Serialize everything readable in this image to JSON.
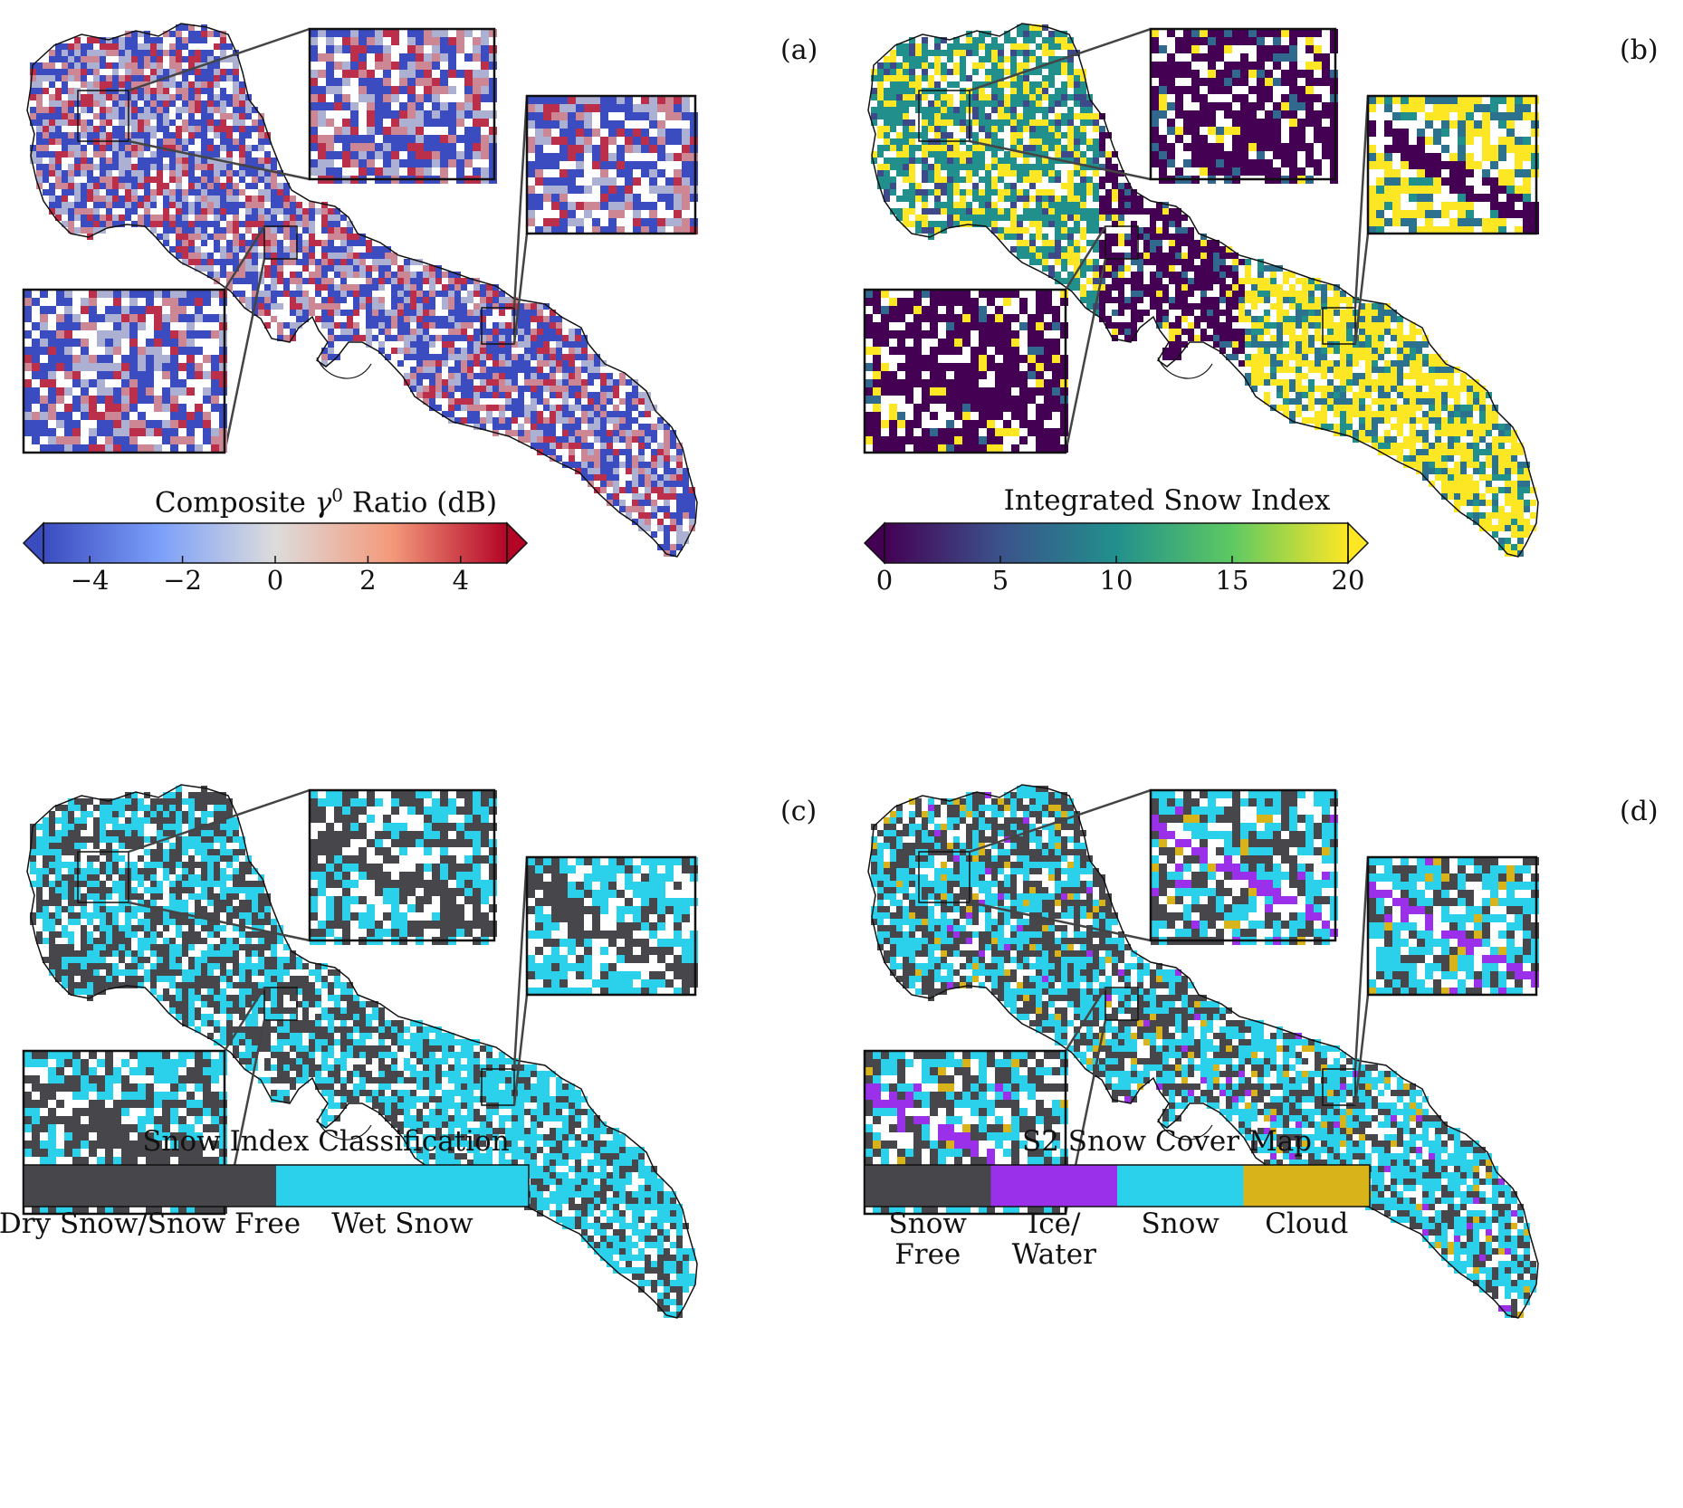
{
  "panels": [
    {
      "label": "(a)",
      "legend_title_pre": "Composite ",
      "legend_title_sym": "γ",
      "legend_title_sup": "0",
      "legend_title_post": " Ratio (dB)",
      "colormap": "coolwarm",
      "ticks": [
        "−4",
        "−2",
        "0",
        "2",
        "4"
      ],
      "range": [
        -5,
        5
      ],
      "tick_values": [
        -4,
        -2,
        0,
        2,
        4
      ],
      "extend": "both"
    },
    {
      "label": "(b)",
      "legend_title": "Integrated Snow Index",
      "colormap": "viridis",
      "ticks": [
        "0",
        "5",
        "10",
        "15",
        "20"
      ],
      "range": [
        0,
        20
      ],
      "tick_values": [
        0,
        5,
        10,
        15,
        20
      ],
      "extend": "both"
    },
    {
      "label": "(c)",
      "legend_title": "Snow Index Classification",
      "classes": [
        {
          "label": "Dry Snow/Snow Free",
          "color": "#46464b"
        },
        {
          "label": "Wet Snow",
          "color": "#2bd0ea"
        }
      ]
    },
    {
      "label": "(d)",
      "legend_title": "S2 Snow Cover Map",
      "classes": [
        {
          "label": "Snow\nFree",
          "color": "#46464b"
        },
        {
          "label": "Ice/\nWater",
          "color": "#9b30ea"
        },
        {
          "label": "Snow",
          "color": "#2bd0ea"
        },
        {
          "label": "Cloud",
          "color": "#d8b319"
        }
      ]
    }
  ],
  "colors": {
    "coolwarm_low": "#3b4cc0",
    "coolwarm_mid": "#dddcdc",
    "coolwarm_high": "#b40426",
    "viridis_low": "#440154",
    "viridis_mid": "#21908d",
    "viridis_high": "#fde725",
    "snow_free": "#46464b",
    "ice_water": "#9b30ea",
    "snow": "#2bd0ea",
    "cloud": "#d8b319"
  }
}
